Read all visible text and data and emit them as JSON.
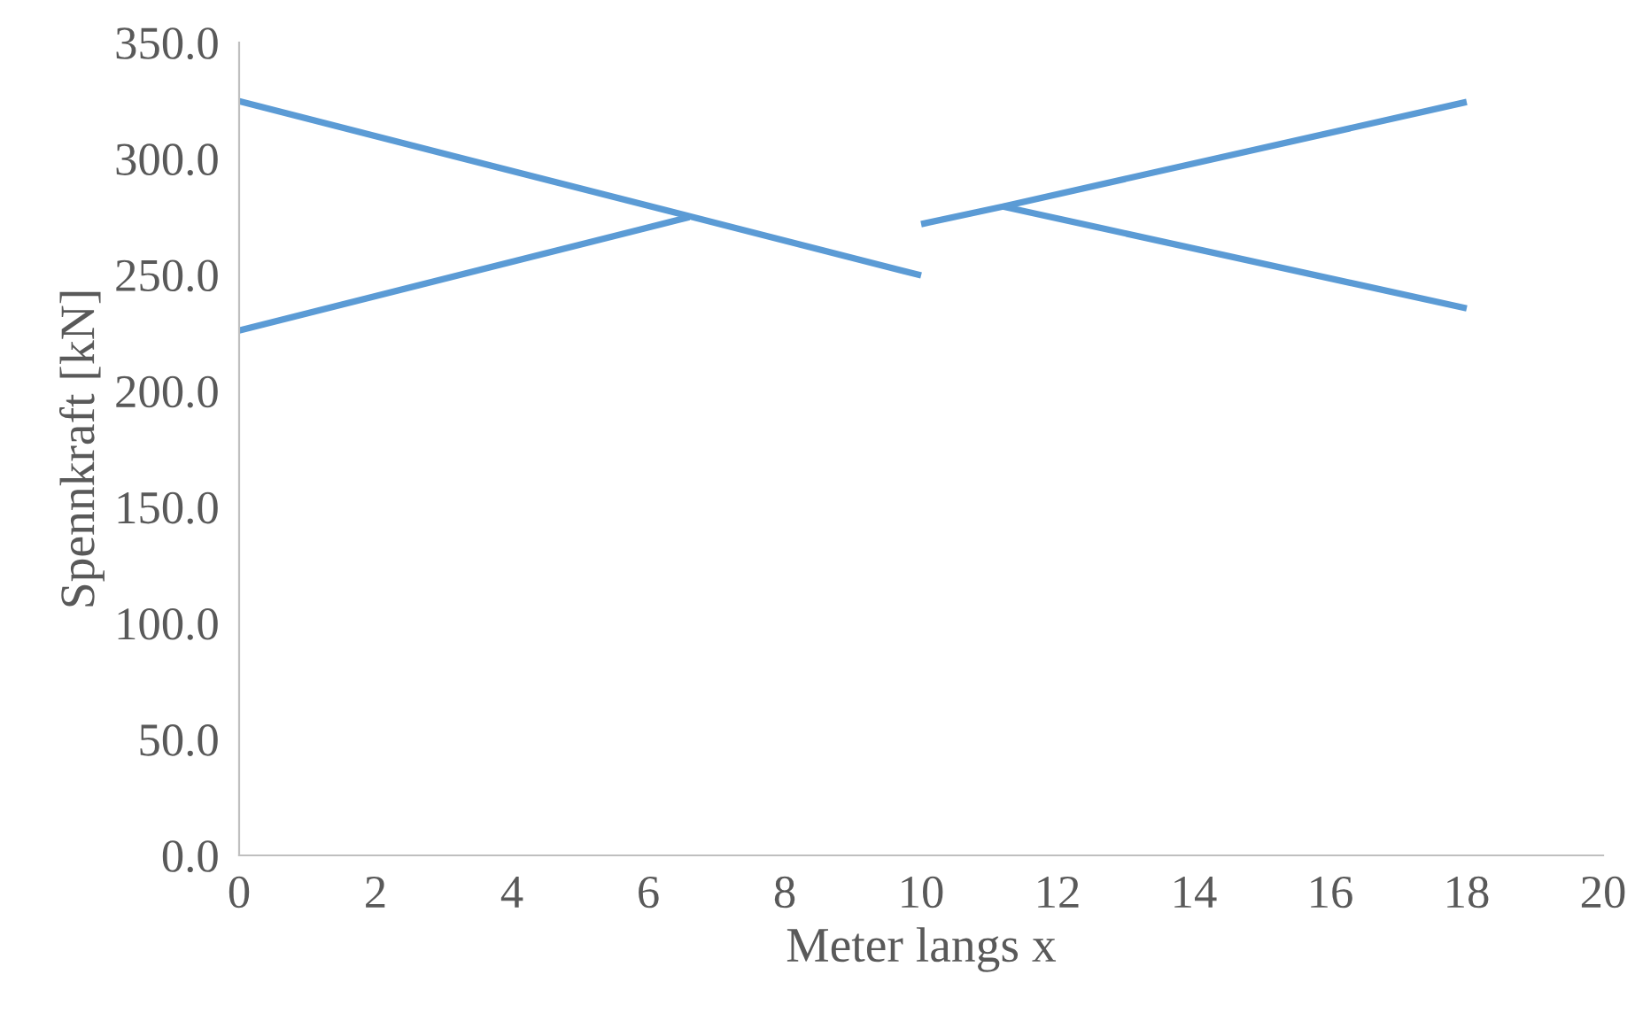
{
  "chart_data": {
    "type": "line",
    "xlabel": "Meter langs x",
    "ylabel": "Spennkraft [kN]",
    "series": [
      {
        "color": "#5b9bd5",
        "x": [
          0,
          10
        ],
        "values": [
          324.7,
          249.7
        ]
      },
      {
        "color": "#5b9bd5",
        "x": [
          0,
          6.6
        ],
        "values": [
          226,
          274.8
        ]
      },
      {
        "color": "#5b9bd5",
        "x": [
          10,
          11.2,
          18
        ],
        "values": [
          271.8,
          279.4,
          324.4
        ]
      },
      {
        "color": "#5b9bd5",
        "x": [
          11.2,
          18
        ],
        "values": [
          279.4,
          235.5
        ]
      }
    ],
    "xlim": [
      0,
      20
    ],
    "ylim": [
      0,
      350
    ],
    "xticks": [
      0,
      2,
      4,
      6,
      8,
      10,
      12,
      14,
      16,
      18,
      20
    ],
    "yticks": [
      {
        "value": 0,
        "label": "0.0"
      },
      {
        "value": 50,
        "label": "50.0"
      },
      {
        "value": 100,
        "label": "100.0"
      },
      {
        "value": 150,
        "label": "150.0"
      },
      {
        "value": 200,
        "label": "200.0"
      },
      {
        "value": 250,
        "label": "250.0"
      },
      {
        "value": 300,
        "label": "300.0"
      },
      {
        "value": 350,
        "label": "350.0"
      }
    ],
    "grid": false,
    "legend": false,
    "marker": "none",
    "line_style": "solid"
  }
}
